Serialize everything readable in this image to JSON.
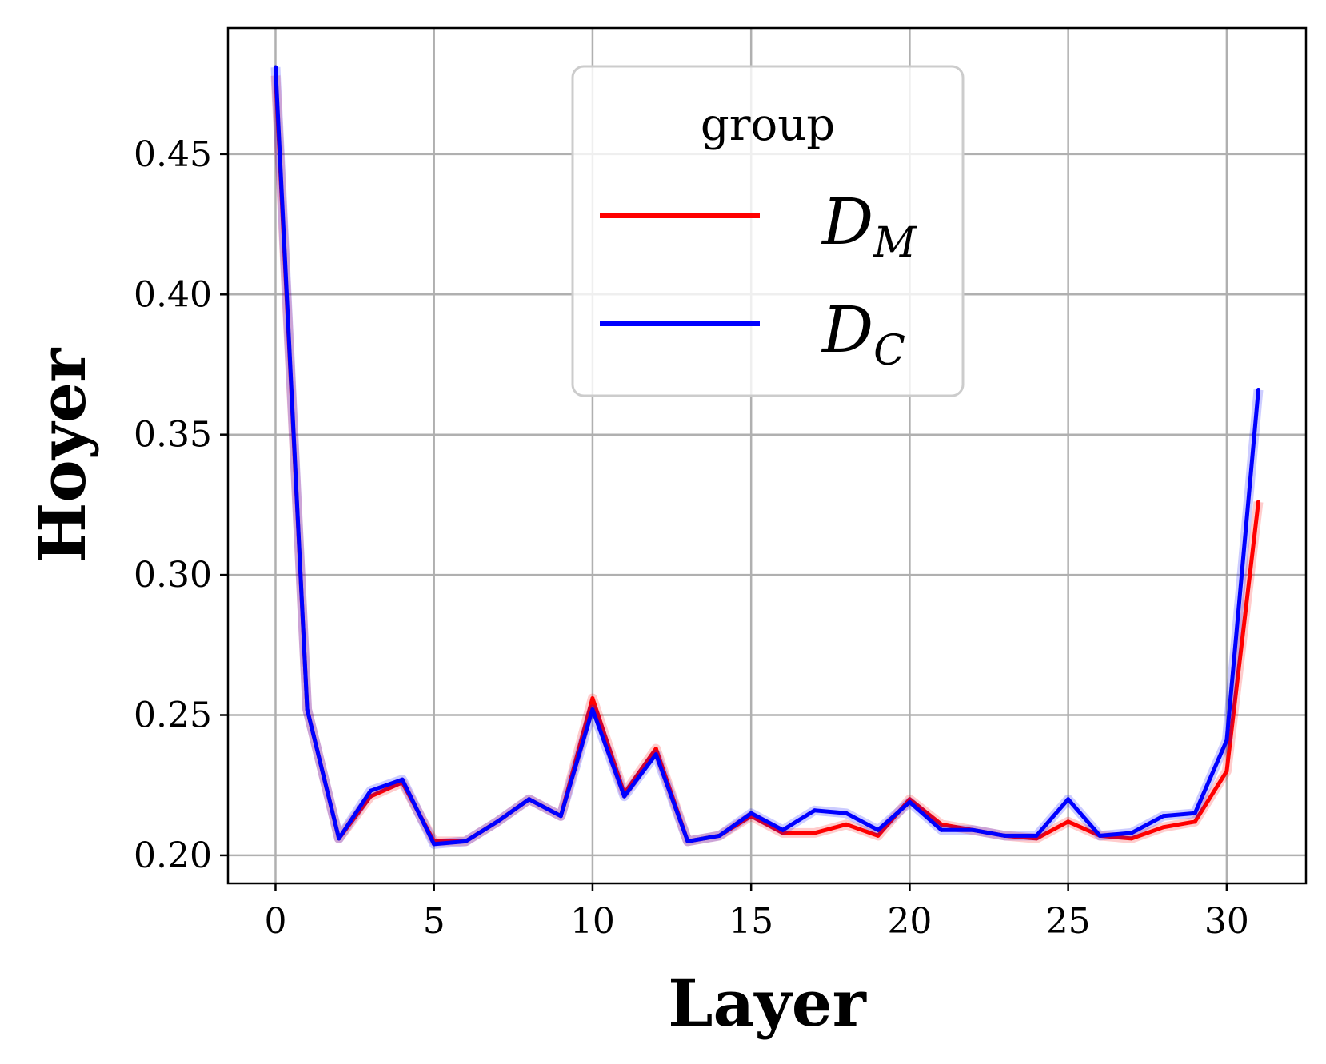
{
  "chart_data": {
    "type": "line",
    "title": "",
    "xlabel": "Layer",
    "ylabel": "Hoyer",
    "xlim": [
      -1.5,
      32.5
    ],
    "ylim": [
      0.19,
      0.495
    ],
    "xticks": [
      0,
      5,
      10,
      15,
      20,
      25,
      30
    ],
    "xtick_labels": [
      "0",
      "5",
      "10",
      "15",
      "20",
      "25",
      "30"
    ],
    "yticks": [
      0.2,
      0.25,
      0.3,
      0.35,
      0.4,
      0.45
    ],
    "ytick_labels": [
      "0.20",
      "0.25",
      "0.30",
      "0.35",
      "0.40",
      "0.45"
    ],
    "grid": true,
    "legend": {
      "title": "group",
      "placement": "top-center"
    },
    "x": [
      0,
      1,
      2,
      3,
      4,
      5,
      6,
      7,
      8,
      9,
      10,
      11,
      12,
      13,
      14,
      15,
      16,
      17,
      18,
      19,
      20,
      21,
      22,
      23,
      24,
      25,
      26,
      27,
      28,
      29,
      30,
      31
    ],
    "series": [
      {
        "name": "D_M",
        "label_main": "D",
        "label_sub": "M",
        "color": "#ff0000",
        "values": [
          0.478,
          0.252,
          0.206,
          0.221,
          0.226,
          0.205,
          0.205,
          0.212,
          0.22,
          0.214,
          0.256,
          0.222,
          0.238,
          0.205,
          0.207,
          0.214,
          0.208,
          0.208,
          0.211,
          0.207,
          0.22,
          0.211,
          0.209,
          0.207,
          0.206,
          0.212,
          0.207,
          0.206,
          0.21,
          0.212,
          0.23,
          0.326
        ]
      },
      {
        "name": "D_C",
        "label_main": "D",
        "label_sub": "C",
        "color": "#0000ff",
        "values": [
          0.481,
          0.252,
          0.206,
          0.223,
          0.227,
          0.204,
          0.205,
          0.212,
          0.22,
          0.214,
          0.252,
          0.221,
          0.236,
          0.205,
          0.207,
          0.215,
          0.209,
          0.216,
          0.215,
          0.209,
          0.219,
          0.209,
          0.209,
          0.207,
          0.207,
          0.22,
          0.207,
          0.208,
          0.214,
          0.215,
          0.241,
          0.366
        ]
      }
    ]
  }
}
